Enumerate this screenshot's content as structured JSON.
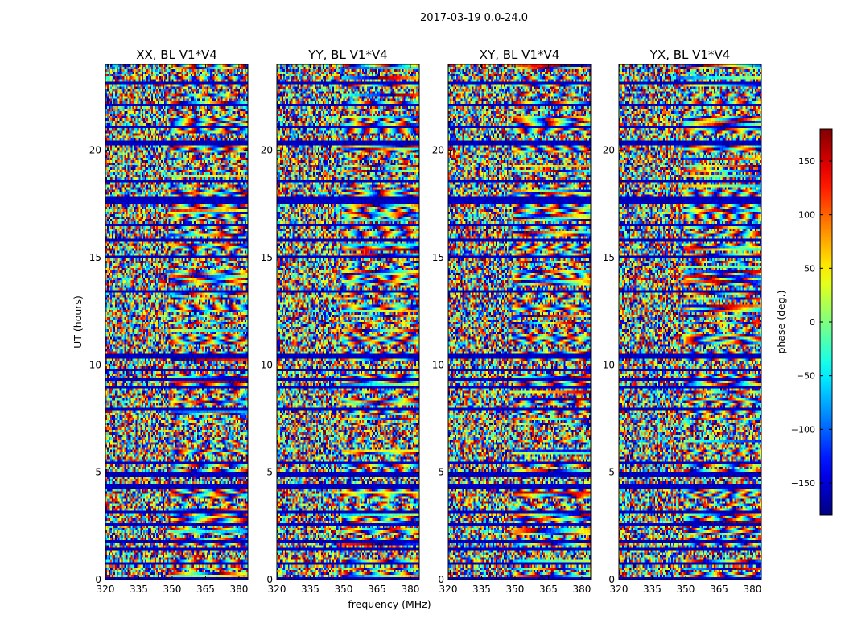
{
  "figure": {
    "suptitle": "2017-03-19 0.0-24.0",
    "xlabel": "frequency (MHz)",
    "ylabel": "UT (hours)"
  },
  "colorbar": {
    "label": "phase (deg.)",
    "range": [
      -180,
      180
    ],
    "ticks": [
      150,
      100,
      50,
      0,
      -50,
      -100,
      -150
    ],
    "tick_labels": [
      "150",
      "100",
      "50",
      "0",
      "−50",
      "−100",
      "−150"
    ],
    "colormap": "jet",
    "colors": [
      "#00007f",
      "#0000ff",
      "#007fff",
      "#00ffff",
      "#7fff7f",
      "#ffff00",
      "#ff7f00",
      "#ff0000",
      "#7f0000"
    ]
  },
  "chart_data": {
    "type": "heatmap",
    "description_value": "visibility phase (deg.) vs frequency and UT",
    "xlim": [
      320,
      384
    ],
    "ylim": [
      0,
      24
    ],
    "x_ticks": [
      320,
      335,
      350,
      365,
      380
    ],
    "y_ticks": [
      0,
      5,
      10,
      15,
      20
    ],
    "panels": [
      {
        "title": "XX, BL V1*V4"
      },
      {
        "title": "YY, BL V1*V4"
      },
      {
        "title": "XY, BL V1*V4"
      },
      {
        "title": "YX, BL V1*V4"
      }
    ]
  }
}
